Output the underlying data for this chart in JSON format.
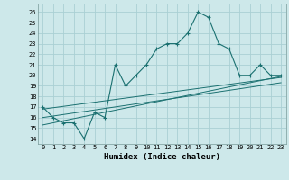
{
  "xlabel": "Humidex (Indice chaleur)",
  "bg_color": "#cde8ea",
  "grid_color": "#aad0d4",
  "line_color": "#1a7070",
  "xlim": [
    -0.5,
    23.5
  ],
  "ylim": [
    13.5,
    26.8
  ],
  "xticks": [
    0,
    1,
    2,
    3,
    4,
    5,
    6,
    7,
    8,
    9,
    10,
    11,
    12,
    13,
    14,
    15,
    16,
    17,
    18,
    19,
    20,
    21,
    22,
    23
  ],
  "yticks": [
    14,
    15,
    16,
    17,
    18,
    19,
    20,
    21,
    22,
    23,
    24,
    25,
    26
  ],
  "series0_x": [
    0,
    1,
    2,
    3,
    4,
    5,
    6,
    7,
    8,
    9,
    10,
    11,
    12,
    13,
    14,
    15,
    16,
    17,
    18,
    19,
    20,
    21,
    22,
    23
  ],
  "series0_y": [
    17,
    16,
    15.5,
    15.5,
    14,
    16.5,
    16,
    21,
    19,
    20,
    21,
    22.5,
    23,
    23,
    24,
    26,
    25.5,
    23,
    22.5,
    20,
    20,
    21,
    20,
    20
  ],
  "trend1_x": [
    0,
    23
  ],
  "trend1_y": [
    16.8,
    19.8
  ],
  "trend2_x": [
    0,
    23
  ],
  "trend2_y": [
    16.0,
    19.3
  ],
  "trend3_x": [
    0,
    23
  ],
  "trend3_y": [
    15.3,
    19.9
  ]
}
